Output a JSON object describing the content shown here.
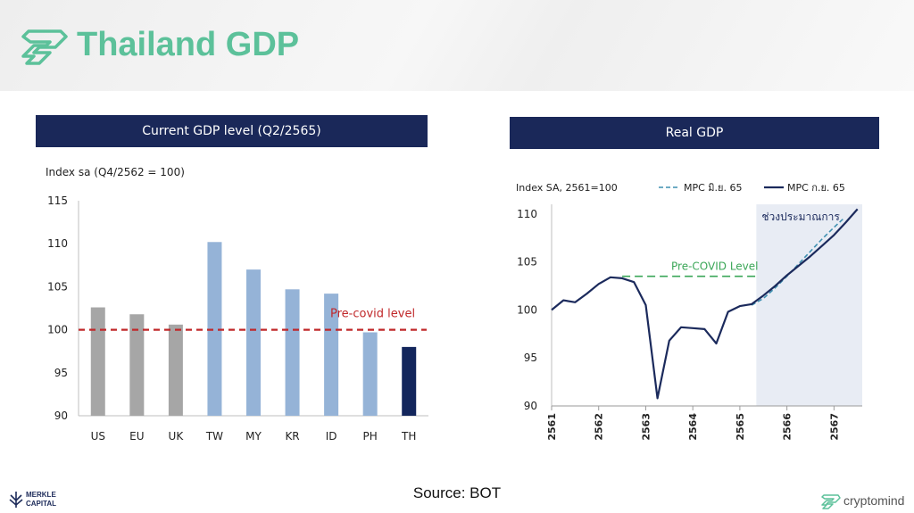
{
  "title": "Thailand GDP",
  "source": "Source: BOT",
  "footer": {
    "left_logo_line1": "MERKLE",
    "left_logo_line2": "CAPITAL",
    "right_logo": "cryptomind"
  },
  "colors": {
    "title_green": "#5cc19a",
    "header_navy": "#1a2859",
    "bar_gray": "#a6a6a6",
    "bar_blue": "#95b3d7",
    "bar_navy": "#13265c",
    "precovid_red": "#c0282a",
    "line_navy": "#1b2a5c",
    "line_teal": "#3e8fb0",
    "precovid_green": "#3aa657",
    "forecast_shade": "#e8ecf4"
  },
  "chart_data": [
    {
      "type": "bar",
      "panel_title": "Current GDP level (Q2/2565)",
      "ylabel": "Index sa (Q4/2562 = 100)",
      "categories": [
        "US",
        "EU",
        "UK",
        "TW",
        "MY",
        "KR",
        "ID",
        "PH",
        "TH"
      ],
      "values": [
        102.6,
        101.8,
        100.6,
        110.2,
        107.0,
        104.7,
        104.2,
        99.7,
        98.0
      ],
      "bar_colors": [
        "gray",
        "gray",
        "gray",
        "blue",
        "blue",
        "blue",
        "blue",
        "blue",
        "navy"
      ],
      "ylim": [
        90,
        115
      ],
      "yticks": [
        "90",
        "95",
        "100",
        "105",
        "110",
        "115"
      ],
      "reference_line": {
        "value": 100,
        "label": "Pre-covid level"
      }
    },
    {
      "type": "line",
      "panel_title": "Real GDP",
      "ylabel": "Index SA, 2561=100",
      "xlim": [
        2561,
        2567.6
      ],
      "ylim": [
        90,
        111
      ],
      "xticks": [
        "2561",
        "2562",
        "2563",
        "2564",
        "2565",
        "2566",
        "2567"
      ],
      "yticks": [
        "90",
        "95",
        "100",
        "105",
        "110"
      ],
      "forecast_region": {
        "start": 2565.35,
        "label": "ช่วงประมาณการ"
      },
      "reference_line": {
        "value": 103.5,
        "start": 2562.5,
        "label": "Pre-COVID Level"
      },
      "series": [
        {
          "name": "MPC มิ.ย. 65",
          "style": "dashed",
          "x": [
            2565.25,
            2565.5,
            2565.75,
            2566.0,
            2566.25,
            2566.5,
            2566.75,
            2567.0,
            2567.2
          ],
          "y": [
            100.5,
            101.2,
            102.3,
            103.5,
            104.8,
            106.1,
            107.4,
            108.6,
            109.5
          ]
        },
        {
          "name": "MPC ก.ย. 65",
          "style": "solid",
          "x": [
            2561.0,
            2561.25,
            2561.5,
            2561.75,
            2562.0,
            2562.25,
            2562.5,
            2562.75,
            2563.0,
            2563.25,
            2563.5,
            2563.75,
            2564.0,
            2564.25,
            2564.5,
            2564.75,
            2565.0,
            2565.25,
            2565.5,
            2565.75,
            2566.0,
            2566.25,
            2566.5,
            2566.75,
            2567.0,
            2567.25,
            2567.5
          ],
          "y": [
            100.0,
            101.0,
            100.8,
            101.7,
            102.7,
            103.4,
            103.3,
            102.9,
            100.5,
            90.8,
            96.8,
            98.2,
            98.1,
            98.0,
            96.5,
            99.8,
            100.4,
            100.6,
            101.5,
            102.5,
            103.6,
            104.6,
            105.6,
            106.7,
            107.8,
            109.1,
            110.5
          ]
        }
      ]
    }
  ]
}
